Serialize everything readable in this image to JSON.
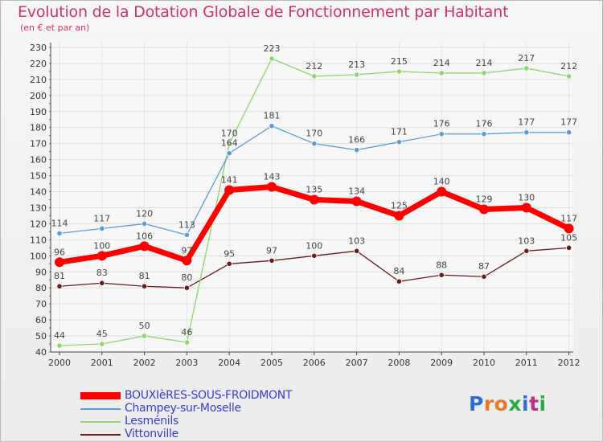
{
  "header": {
    "title": "Evolution de la Dotation Globale de Fonctionnement par Habitant",
    "subtitle": "(en € et par an)"
  },
  "brand": {
    "logo_text": "Proxiti",
    "colors": [
      "#2c6fd1",
      "#e8782a",
      "#e8782a",
      "#2aa84a",
      "#2c6fd1",
      "#c42a8a",
      "#2aa84a"
    ]
  },
  "chart_data": {
    "type": "line",
    "title": "Evolution de la Dotation Globale de Fonctionnement par Habitant",
    "subtitle": "(en € et par an)",
    "xlabel": "",
    "ylabel": "",
    "ylim": [
      40,
      230
    ],
    "y_ticks": [
      40,
      50,
      60,
      70,
      80,
      90,
      100,
      110,
      120,
      130,
      140,
      150,
      160,
      170,
      180,
      190,
      200,
      210,
      220,
      230
    ],
    "grid": true,
    "categories": [
      "2000",
      "2001",
      "2002",
      "2003",
      "2004",
      "2005",
      "2006",
      "2007",
      "2008",
      "2009",
      "2010",
      "2011",
      "2012"
    ],
    "series": [
      {
        "name": "Vittonville",
        "color": "#6b1a1a",
        "values": [
          81,
          83,
          81,
          80,
          95,
          97,
          100,
          103,
          84,
          88,
          87,
          103,
          105
        ]
      },
      {
        "name": "Lesménils",
        "color": "#8cd66a",
        "values": [
          44,
          45,
          50,
          46,
          170,
          223,
          212,
          213,
          215,
          214,
          214,
          217,
          212
        ]
      },
      {
        "name": "Champey-sur-Moselle",
        "color": "#5b9bd5",
        "values": [
          114,
          117,
          120,
          113,
          164,
          181,
          170,
          166,
          171,
          176,
          176,
          177,
          177
        ]
      },
      {
        "name": "BOUXIèRES-SOUS-FROIDMONT",
        "color": "#ff0000",
        "values": [
          96,
          100,
          106,
          97,
          141,
          143,
          135,
          134,
          125,
          140,
          129,
          130,
          117
        ]
      }
    ],
    "legend": [
      "BOUXIèRES-SOUS-FROIDMONT",
      "Champey-sur-Moselle",
      "Lesménils",
      "Vittonville"
    ],
    "legend_position": "bottom-left"
  }
}
